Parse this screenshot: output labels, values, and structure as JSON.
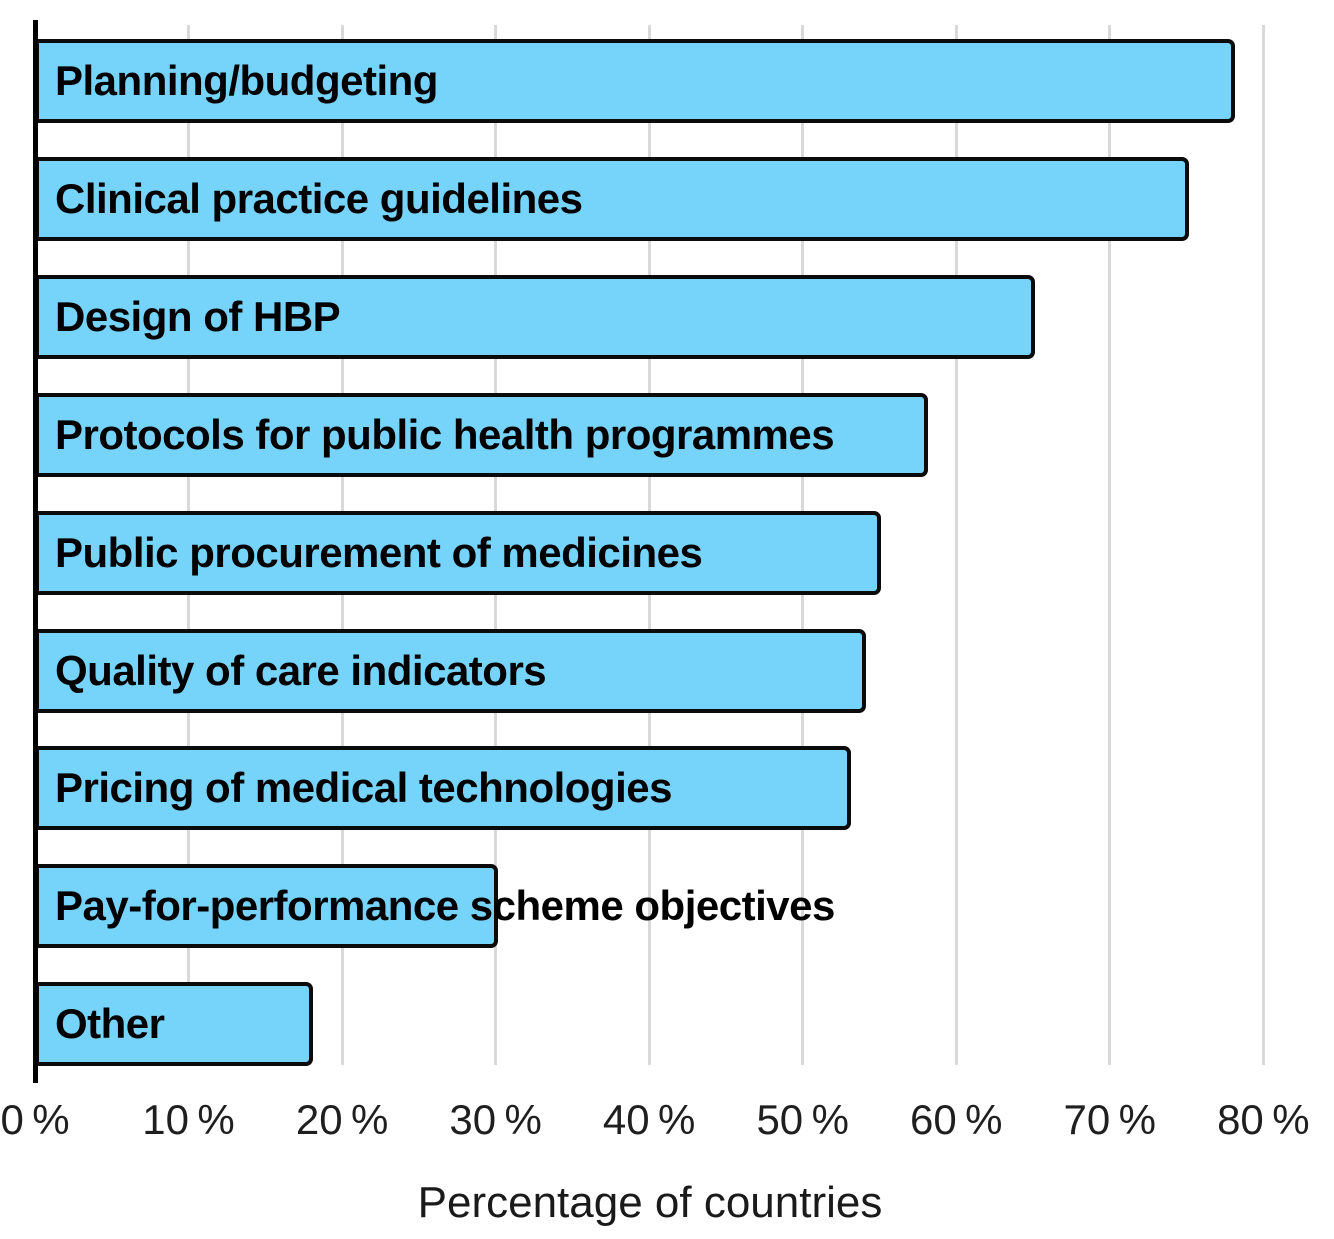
{
  "chart_data": {
    "type": "bar",
    "orientation": "horizontal",
    "title": "",
    "xlabel": "Percentage of countries",
    "ylabel": "",
    "categories": [
      "Planning/budgeting",
      "Clinical practice guidelines",
      "Design of HBP",
      "Protocols for public health programmes",
      "Public procurement of medicines",
      "Quality of care indicators",
      "Pricing of medical technologies",
      "Pay-for-performance scheme objectives",
      "Other"
    ],
    "values": [
      78,
      75,
      65,
      58,
      55,
      54,
      53,
      30,
      18
    ],
    "unit": "%",
    "xlim": [
      0,
      80
    ],
    "xtick_step": 10,
    "xtick_labels": [
      "0 %",
      "10 %",
      "20 %",
      "30 %",
      "40 %",
      "50 %",
      "60 %",
      "70 %",
      "80 %"
    ],
    "grid": "vertical",
    "legend": "none",
    "value_labels_shown": false,
    "colors": {
      "bar_fill": "#76d4fa",
      "bar_border": "#0b0b0b",
      "gridline": "#d9d9d9",
      "axis_line": "#000000",
      "category_label_text": "#000000",
      "tick_label_text": "#1f1f1f",
      "background": "#ffffff"
    }
  }
}
